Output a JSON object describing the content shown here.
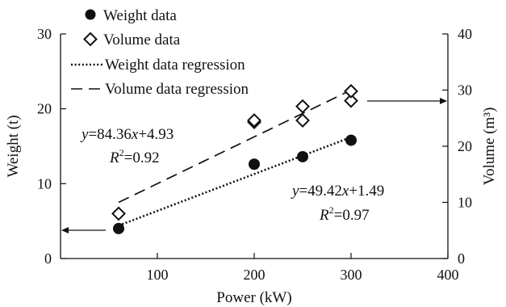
{
  "chart_data": {
    "type": "scatter",
    "xlabel": "Power (kW)",
    "ylabel_left": "Weight (t)",
    "ylabel_right": "Volume (m³)",
    "xlim": [
      0,
      400
    ],
    "ylim_left": [
      0,
      30
    ],
    "ylim_right": [
      0,
      40
    ],
    "x_ticks": [
      "100",
      "200",
      "300",
      "400"
    ],
    "y_left_ticks": [
      "0",
      "10",
      "20",
      "30"
    ],
    "y_right_ticks": [
      "0",
      "10",
      "20",
      "30",
      "40"
    ],
    "grid": false,
    "legend_position": "top",
    "series": [
      {
        "name": "Weight data",
        "axis": "left",
        "marker": "filled-circle",
        "points": [
          [
            60,
            4.0
          ],
          [
            200,
            12.6
          ],
          [
            250,
            13.6
          ],
          [
            300,
            15.8
          ]
        ]
      },
      {
        "name": "Volume data",
        "axis": "right",
        "marker": "open-diamond",
        "points": [
          [
            60,
            8.0
          ],
          [
            200,
            24.3
          ],
          [
            200,
            24.6
          ],
          [
            250,
            24.6
          ],
          [
            250,
            27.1
          ],
          [
            300,
            28.1
          ],
          [
            300,
            29.8
          ]
        ]
      },
      {
        "name": "Weight data regression",
        "axis": "left",
        "style": "dotted",
        "points": [
          [
            60,
            4.4
          ],
          [
            300,
            16.2
          ]
        ]
      },
      {
        "name": "Volume data regression",
        "axis": "right",
        "style": "dashed",
        "points": [
          [
            60,
            10.0
          ],
          [
            300,
            30.0
          ]
        ]
      }
    ],
    "annotations": {
      "volume_eq_y": "y",
      "volume_eq_rest": "=84.36",
      "volume_eq_x": "x",
      "volume_eq_tail": "+4.93",
      "volume_r2_r": "R",
      "volume_r2_sup": "2",
      "volume_r2_val": "=0.92",
      "weight_eq_y": "y",
      "weight_eq_rest": "=49.42",
      "weight_eq_x": "x",
      "weight_eq_tail": "+1.49",
      "weight_r2_r": "R",
      "weight_r2_sup": "2",
      "weight_r2_val": "=0.97"
    },
    "colors": {
      "ink": "#111111",
      "background": "#ffffff"
    }
  }
}
